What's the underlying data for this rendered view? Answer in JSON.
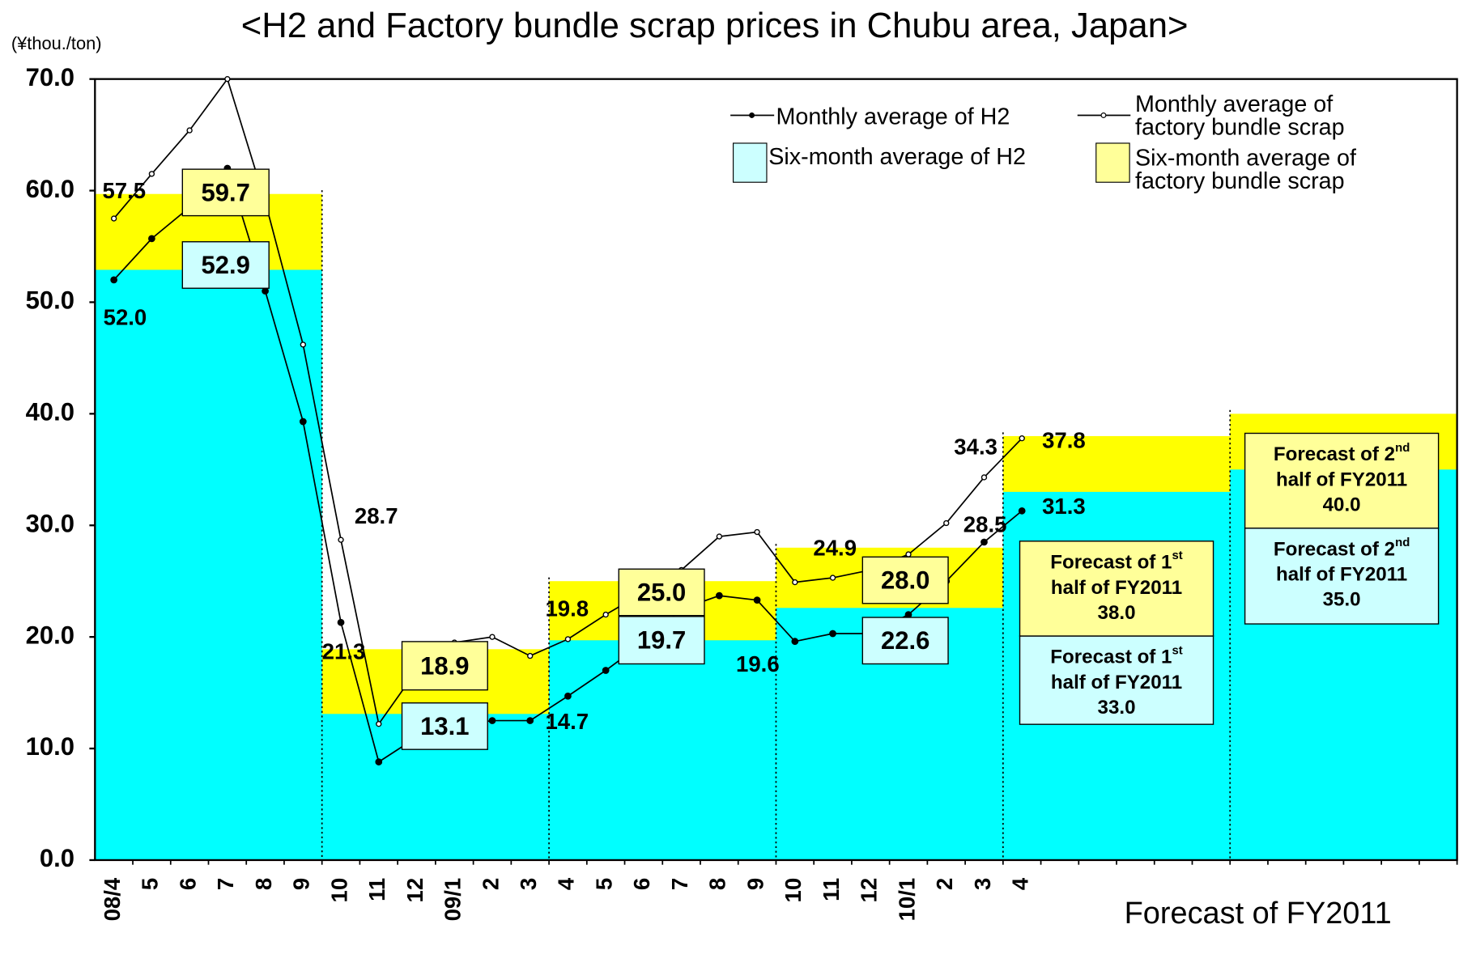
{
  "chart_data": {
    "type": "line",
    "title": "<H2 and Factory bundle scrap prices in Chubu area, Japan>",
    "y_axis_label": "(¥thou./ton)",
    "x_axis_label": "Forecast of FY2011",
    "categories": [
      "08/4",
      "5",
      "6",
      "7",
      "8",
      "9",
      "10",
      "11",
      "12",
      "09/1",
      "2",
      "3",
      "4",
      "5",
      "6",
      "7",
      "8",
      "9",
      "10",
      "11",
      "12",
      "10/1",
      "2",
      "3",
      "4",
      null,
      null,
      null,
      null,
      null,
      null,
      null,
      null,
      null,
      null,
      null
    ],
    "ylim": [
      0,
      70
    ],
    "yticks": [
      {
        "value": 0,
        "label": "0.0"
      },
      {
        "value": 10,
        "label": "10.0"
      },
      {
        "value": 20,
        "label": "20.0"
      },
      {
        "value": 30,
        "label": "30.0"
      },
      {
        "value": 40,
        "label": "40.0"
      },
      {
        "value": 50,
        "label": "50.0"
      },
      {
        "value": 60,
        "label": "60.0"
      },
      {
        "value": 70,
        "label": "70.0"
      }
    ],
    "series": [
      {
        "name": "Monthly average of H2",
        "color": "#000000",
        "marker": "filled",
        "values": [
          52.0,
          55.7,
          58.5,
          62.0,
          51.0,
          39.3,
          21.3,
          8.8,
          11.0,
          12.0,
          12.5,
          12.5,
          14.7,
          17.0,
          19.5,
          22.5,
          23.7,
          23.3,
          19.6,
          20.3,
          20.3,
          22.0,
          25.0,
          28.5,
          31.3,
          null,
          null,
          null,
          null,
          null,
          null,
          null,
          null,
          null,
          null,
          null
        ],
        "value_labels": [
          "52.0",
          null,
          null,
          null,
          null,
          null,
          "21.3",
          null,
          null,
          null,
          null,
          null,
          "14.7",
          null,
          null,
          null,
          null,
          null,
          "19.6",
          null,
          null,
          null,
          null,
          "28.5",
          "31.3",
          null,
          null,
          null,
          null,
          null,
          null,
          null,
          null,
          null,
          null,
          null
        ]
      },
      {
        "name": "Monthly average of factory bundle scrap",
        "color": "#000000",
        "marker": "open",
        "values": [
          57.5,
          61.5,
          65.4,
          70.0,
          59.0,
          46.2,
          28.7,
          12.2,
          17.0,
          19.5,
          20.0,
          18.3,
          19.8,
          22.0,
          24.0,
          26.0,
          29.0,
          29.4,
          24.9,
          25.3,
          26.0,
          27.4,
          30.2,
          34.3,
          37.8,
          null,
          null,
          null,
          null,
          null,
          null,
          null,
          null,
          null,
          null,
          null
        ],
        "value_labels": [
          "57.5",
          null,
          null,
          null,
          null,
          null,
          "28.7",
          null,
          null,
          null,
          null,
          null,
          "19.8",
          null,
          null,
          null,
          null,
          null,
          "24.9",
          null,
          null,
          null,
          null,
          "34.3",
          "37.8",
          null,
          null,
          null,
          null,
          null,
          null,
          null,
          null,
          null,
          null,
          null
        ]
      }
    ],
    "six_month_series": [
      {
        "name": "Six-month average of H2",
        "color": "#00ffff",
        "box_color": "#ccffff",
        "values": [
          52.9,
          13.1,
          19.7,
          22.6,
          33.0,
          35.0
        ],
        "value_labels": [
          "52.9",
          "13.1",
          "19.7",
          "22.6",
          "33.0",
          "35.0"
        ],
        "notes": [
          null,
          null,
          null,
          null,
          {
            "line1": "Forecast of 1",
            "sup": "st",
            "line2": "half of FY2011"
          },
          {
            "line1": "Forecast of 2",
            "sup": "nd",
            "line2": "half of FY2011"
          }
        ]
      },
      {
        "name": "Six-month average of factory bundle scrap",
        "color": "#ffff00",
        "box_color": "#ffff99",
        "values": [
          59.7,
          18.9,
          25.0,
          28.0,
          38.0,
          40.0
        ],
        "value_labels": [
          "59.7",
          "18.9",
          "25.0",
          "28.0",
          "38.0",
          "40.0"
        ],
        "notes": [
          null,
          null,
          null,
          null,
          {
            "line1": "Forecast of 1",
            "sup": "st",
            "line2": "half of FY2011"
          },
          {
            "line1": "Forecast of 2",
            "sup": "nd",
            "line2": "half of FY2011"
          }
        ]
      }
    ]
  }
}
